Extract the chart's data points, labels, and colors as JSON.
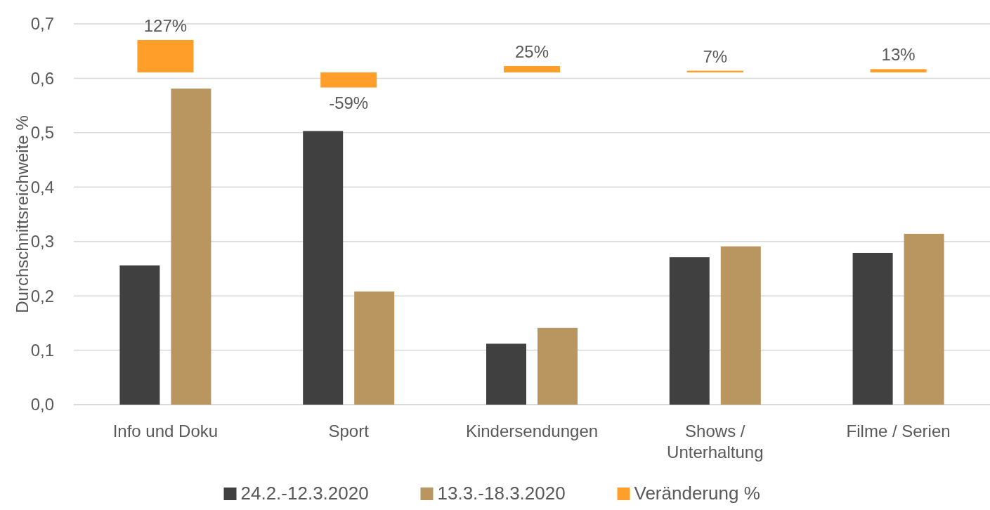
{
  "chart_data": {
    "type": "bar",
    "ylabel": "Durchschnittsreichweite %",
    "categories": [
      "Info und Doku",
      "Sport",
      "Kindersendungen",
      "Shows / Unterhaltung",
      "Filme / Serien"
    ],
    "series": [
      {
        "name": "24.2.-12.3.2020",
        "color": "#404040",
        "values": [
          0.256,
          0.503,
          0.112,
          0.271,
          0.279
        ]
      },
      {
        "name": "13.3.-18.3.2020",
        "color": "#b9955f",
        "values": [
          0.581,
          0.208,
          0.141,
          0.291,
          0.314
        ]
      },
      {
        "name": "Veränderung %",
        "color": "#ff9f2a",
        "axis": "y2",
        "values": [
          127,
          -59,
          25,
          7,
          13
        ],
        "value_labels": [
          "127%",
          "-59%",
          "25%",
          "7%",
          "13%"
        ]
      }
    ],
    "ylim": [
      0,
      0.7
    ],
    "yticks": [
      {
        "value": 0,
        "label": "0,0"
      },
      {
        "value": 0.1,
        "label": "0,1"
      },
      {
        "value": 0.2,
        "label": "0,2"
      },
      {
        "value": 0.3,
        "label": "0,3"
      },
      {
        "value": 0.4,
        "label": "0,4"
      },
      {
        "value": 0.5,
        "label": "0,5"
      },
      {
        "value": 0.6,
        "label": "0,6"
      },
      {
        "value": 0.7,
        "label": "0,7"
      }
    ],
    "y2lim": [
      -1300,
      190
    ],
    "grid": "y",
    "legend": "bottom"
  }
}
